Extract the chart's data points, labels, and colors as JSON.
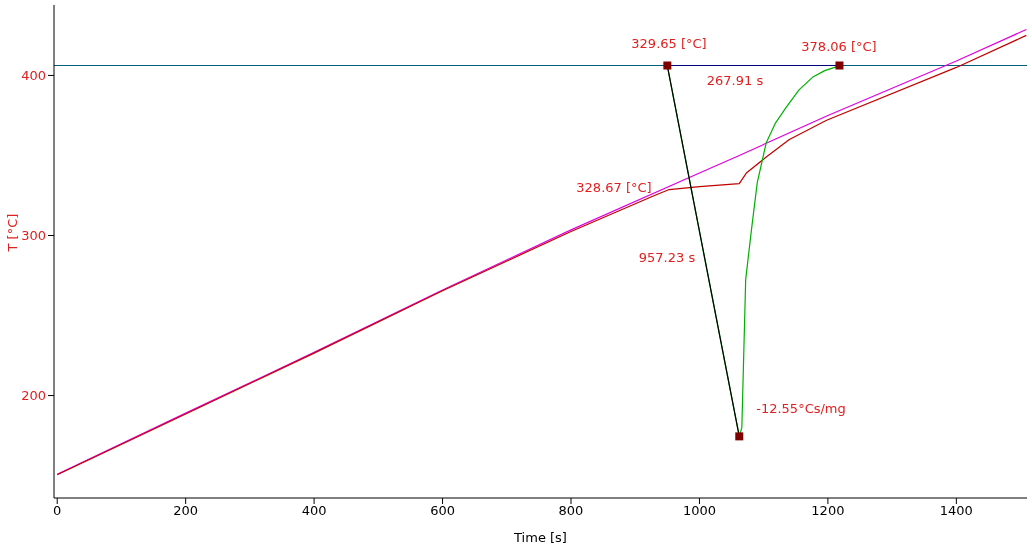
{
  "chart_data": {
    "type": "line",
    "xlabel": "Time [s]",
    "ylabel": "T  [°C]",
    "xlim": [
      -5,
      1510
    ],
    "ylim": [
      136,
      444
    ],
    "xticks": [
      0,
      200,
      400,
      600,
      800,
      1000,
      1200,
      1400
    ],
    "yticks": [
      200,
      300,
      400
    ],
    "grid": false,
    "legend": false,
    "series": [
      {
        "color": "#00607a",
        "x": [
          -5,
          1510
        ],
        "values": [
          406.2,
          406.2
        ]
      },
      {
        "color": "#e000e0",
        "x": [
          0,
          200,
          400,
          600,
          800,
          1000,
          1062,
          1200,
          1400,
          1509
        ],
        "values": [
          150.8,
          189,
          227,
          266,
          303.5,
          339,
          350,
          375,
          409,
          428.7
        ]
      },
      {
        "color": "#c00000",
        "x": [
          0,
          200,
          400,
          600,
          800,
          930,
          953,
          1000,
          1062,
          1073,
          1104,
          1140,
          1198,
          1400,
          1509
        ],
        "values": [
          150.5,
          188.5,
          226.5,
          265.5,
          302.5,
          325,
          328.7,
          330.5,
          332.4,
          339,
          349,
          360,
          372,
          405,
          425
        ]
      },
      {
        "color": "#00b000",
        "x": [
          950,
          1062,
          1066,
          1072,
          1081,
          1090,
          1104,
          1118,
          1135,
          1155,
          1176,
          1195,
          1218
        ],
        "values": [
          406,
          174.5,
          180,
          272.6,
          303.7,
          333,
          358,
          370,
          380,
          391,
          398.8,
          403,
          406
        ]
      },
      {
        "color": "#000000",
        "x": [
          950,
          1062
        ],
        "values": [
          406,
          174.5
        ]
      },
      {
        "color": "#000080",
        "x": [
          950,
          1218
        ],
        "values": [
          406.2,
          406.2
        ]
      },
      {
        "type": "scatter",
        "marker": "square",
        "color": "#800000",
        "x": [
          950,
          1218,
          1062
        ],
        "values": [
          406.2,
          406.2,
          174.5
        ]
      }
    ],
    "annotations": [
      "329.65 [°C]",
      "378.06 [°C]",
      "267.91 s",
      "328.67 [°C]",
      "957.23 s",
      "-12.55°Cs/mg"
    ]
  }
}
